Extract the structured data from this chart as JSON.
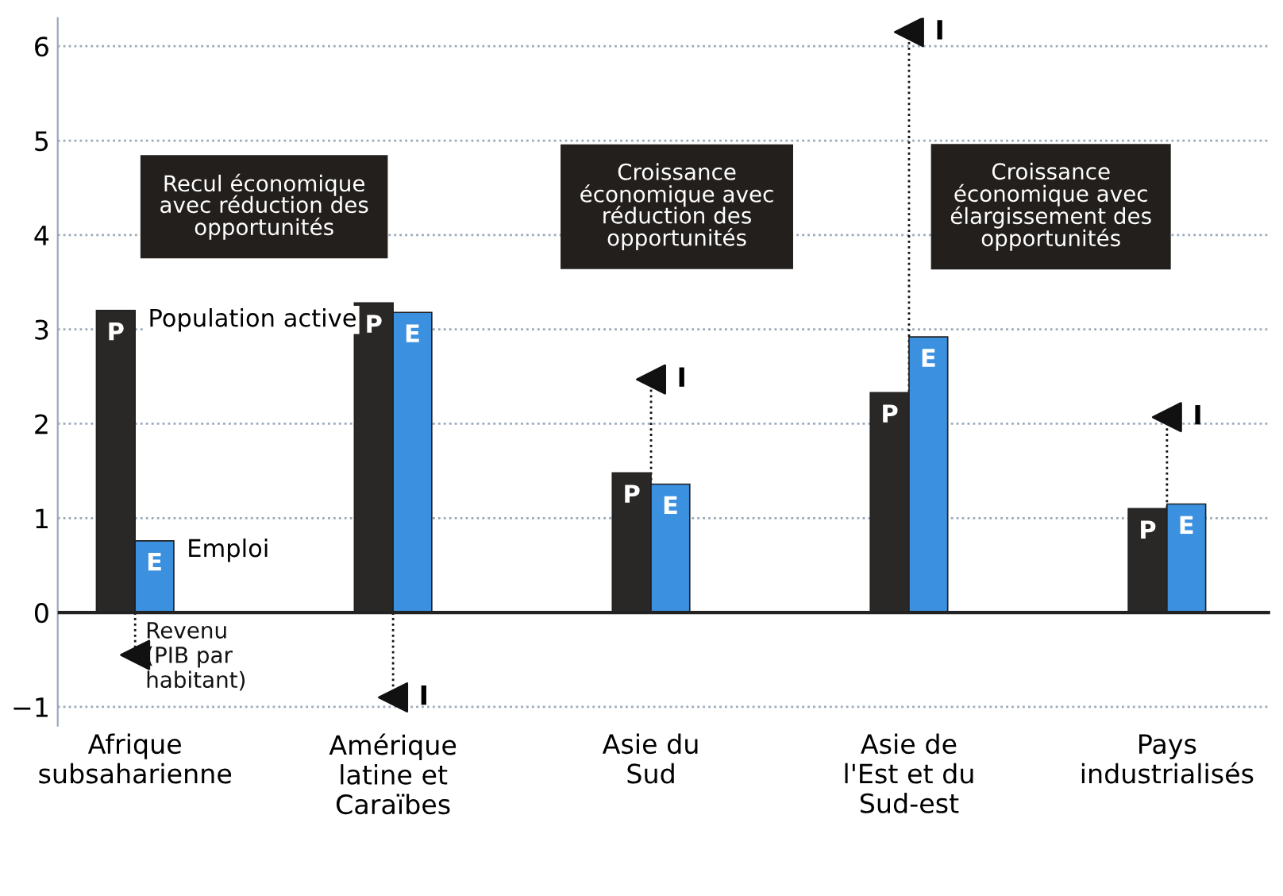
{
  "chart_data": {
    "type": "bar",
    "categories": [
      "Afrique\nsubsaharienne",
      "Amérique\nlatine et\nCaraïbes",
      "Asie du\nSud",
      "Asie de\nl'Est et du\nSud-est",
      "Pays\nindustrialisés"
    ],
    "series": [
      {
        "name": "Population active",
        "color": "#2a2826",
        "values": [
          3.2,
          3.28,
          1.48,
          2.33,
          1.1
        ],
        "value_labels": [
          "P",
          "P",
          "P",
          "P",
          "P"
        ]
      },
      {
        "name": "Emploi",
        "color": "#3b90e0",
        "values": [
          0.76,
          3.18,
          1.36,
          2.92,
          1.15
        ],
        "value_labels": [
          "E",
          "E",
          "E",
          "E",
          "E"
        ]
      },
      {
        "name": "Revenu\n(PIB par\nhabitant)",
        "type": "scatter",
        "marker": "triangle",
        "color": "#111111",
        "values": [
          -0.45,
          -0.9,
          2.47,
          6.15,
          2.07
        ],
        "value_labels": [
          null,
          "I",
          "I",
          "I",
          "I"
        ]
      }
    ],
    "annotations": [
      "Recul économique\navec réduction des\nopportunités",
      "Croissance\néconomique avec\nréduction des\nopportunités",
      "Croissance\néconomique avec\nélargissement des\nopportunités"
    ],
    "ylim": [
      -1.2,
      6.3
    ],
    "yticks": [
      {
        "value": -1,
        "label": "−1"
      },
      0,
      1,
      2,
      3,
      4,
      5,
      6
    ],
    "grid": "y"
  }
}
